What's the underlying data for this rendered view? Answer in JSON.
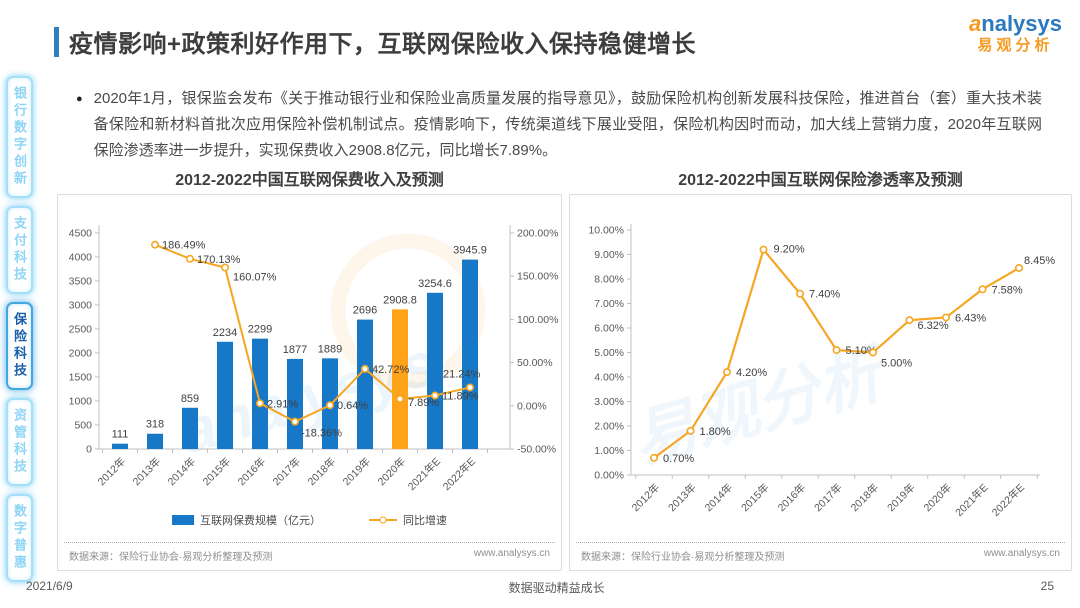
{
  "page": {
    "title": "疫情影响+政策利好作用下，互联网保险收入保持稳健增长",
    "logo": {
      "brand": "analysys",
      "brand_cn": "易观分析"
    },
    "bullet": "2020年1月，银保监会发布《关于推动银行业和保险业高质量发展的指导意见》，鼓励保险机构创新发展科技保险，推进首台（套）重大技术装备保险和新材料首批次应用保险补偿机制试点。疫情影响下，传统渠道线下展业受阻，保险机构因时而动，加大线上营销力度，2020年互联网保险渗透率进一步提升，实现保费收入2908.8亿元，同比增长7.89%。",
    "footer": {
      "date": "2021/6/9",
      "slogan": "数据驱动精益成长",
      "page_number": "25"
    }
  },
  "sidebar": {
    "items": [
      {
        "label": "银行数字创新",
        "active": false
      },
      {
        "label": "支付科技",
        "active": false
      },
      {
        "label": "保险科技",
        "active": true
      },
      {
        "label": "资管科技",
        "active": false
      },
      {
        "label": "数字普惠",
        "active": false
      }
    ]
  },
  "chart_data": [
    {
      "type": "bar",
      "title": "2012-2022中国互联网保费收入及预测",
      "categories": [
        "2012年",
        "2013年",
        "2014年",
        "2015年",
        "2016年",
        "2017年",
        "2018年",
        "2019年",
        "2020年",
        "2021年E",
        "2022年E"
      ],
      "series": [
        {
          "name": "互联网保费规模（亿元）",
          "kind": "bar",
          "axis": "left",
          "values": [
            111,
            318,
            859,
            2234,
            2299,
            1877,
            1889,
            2696,
            2908.8,
            3254.6,
            3945.9
          ],
          "labels": [
            "111",
            "318",
            "859",
            "2234",
            "2299",
            "1877",
            "1889",
            "2696",
            "2908.8",
            "3254.6",
            "3945.9"
          ],
          "color": "#1878C8",
          "highlight_index": 8,
          "highlight_color": "#FFA318"
        },
        {
          "name": "同比增速",
          "kind": "line",
          "axis": "right",
          "values": [
            null,
            186.49,
            170.13,
            160.07,
            2.91,
            -18.36,
            0.64,
            42.72,
            7.89,
            11.89,
            21.24
          ],
          "labels": [
            "",
            "186.49%",
            "170.13%",
            "160.07%",
            "2.91%",
            "-18.36%",
            "0.64%",
            "42.72%",
            "7.89%",
            "11.89%",
            "21.24%"
          ],
          "color": "#F5A623"
        }
      ],
      "left_axis": {
        "min": 0,
        "max": 4500,
        "step": 500
      },
      "right_axis": {
        "min": -50,
        "max": 200,
        "step": 50,
        "format": "percent"
      },
      "legend": [
        "互联网保费规模（亿元）",
        "同比增速"
      ],
      "legend_position": "bottom",
      "grid": false,
      "source": "数据来源：保险行业协会·易观分析整理及预测",
      "website": "www.analysys.cn"
    },
    {
      "type": "line",
      "title": "2012-2022中国互联网保险渗透率及预测",
      "categories": [
        "2012年",
        "2013年",
        "2014年",
        "2015年",
        "2016年",
        "2017年",
        "2018年",
        "2019年",
        "2020年",
        "2021年E",
        "2022年E"
      ],
      "values": [
        0.7,
        1.8,
        4.2,
        9.2,
        7.4,
        5.1,
        5.0,
        6.32,
        6.43,
        7.58,
        8.45
      ],
      "labels": [
        "0.70%",
        "1.80%",
        "4.20%",
        "9.20%",
        "7.40%",
        "5.10%",
        "5.00%",
        "6.32%",
        "6.43%",
        "7.58%",
        "8.45%"
      ],
      "y_axis": {
        "min": 0,
        "max": 10,
        "step": 1,
        "format": "percent"
      },
      "color": "#F5A623",
      "grid": false,
      "source": "数据来源：保险行业协会·易观分析整理及预测",
      "website": "www.analysys.cn"
    }
  ]
}
